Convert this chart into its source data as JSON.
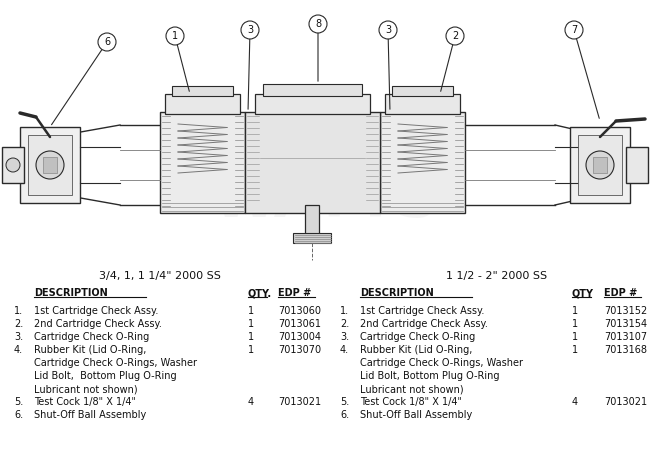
{
  "bg_color": "#ffffff",
  "title1": "3/4, 1, 1 1/4\" 2000 SS",
  "title2": "1 1/2 - 2\" 2000 SS",
  "col1_rows": [
    [
      "1.",
      "1st Cartridge Check Assy.",
      "1",
      "7013060"
    ],
    [
      "2.",
      "2nd Cartridge Check Assy.",
      "1",
      "7013061"
    ],
    [
      "3.",
      "Cartridge Check O-Ring",
      "1",
      "7013004"
    ],
    [
      "4.",
      "Rubber Kit (Lid O-Ring,",
      "1",
      "7013070"
    ],
    [
      "",
      "Cartridge Check O-Rings, Washer",
      "",
      ""
    ],
    [
      "",
      "Lid Bolt,  Bottom Plug O-Ring",
      "",
      ""
    ],
    [
      "",
      "Lubricant not shown)",
      "",
      ""
    ],
    [
      "5.",
      "Test Cock 1/8\" X 1/4\"",
      "4",
      "7013021"
    ],
    [
      "6.",
      "Shut-Off Ball Assembly",
      "",
      ""
    ]
  ],
  "col2_rows": [
    [
      "1.",
      "1st Cartridge Check Assy.",
      "1",
      "7013152"
    ],
    [
      "2.",
      "2nd Cartridge Check Assy.",
      "1",
      "7013154"
    ],
    [
      "3.",
      "Cartridge Check O-Ring",
      "1",
      "7013107"
    ],
    [
      "4.",
      "Rubber Kit (Lid O-Ring,",
      "1",
      "7013168"
    ],
    [
      "",
      "Cartridge Check O-Rings, Washer",
      "",
      ""
    ],
    [
      "",
      "Lid Bolt, Bottom Plug O-Ring",
      "",
      ""
    ],
    [
      "",
      "Lubricant not shown)",
      "",
      ""
    ],
    [
      "5.",
      "Test Cock 1/8\" X 1/4\"",
      "4",
      "7013021"
    ],
    [
      "6.",
      "Shut-Off Ball Assembly",
      "",
      ""
    ]
  ]
}
